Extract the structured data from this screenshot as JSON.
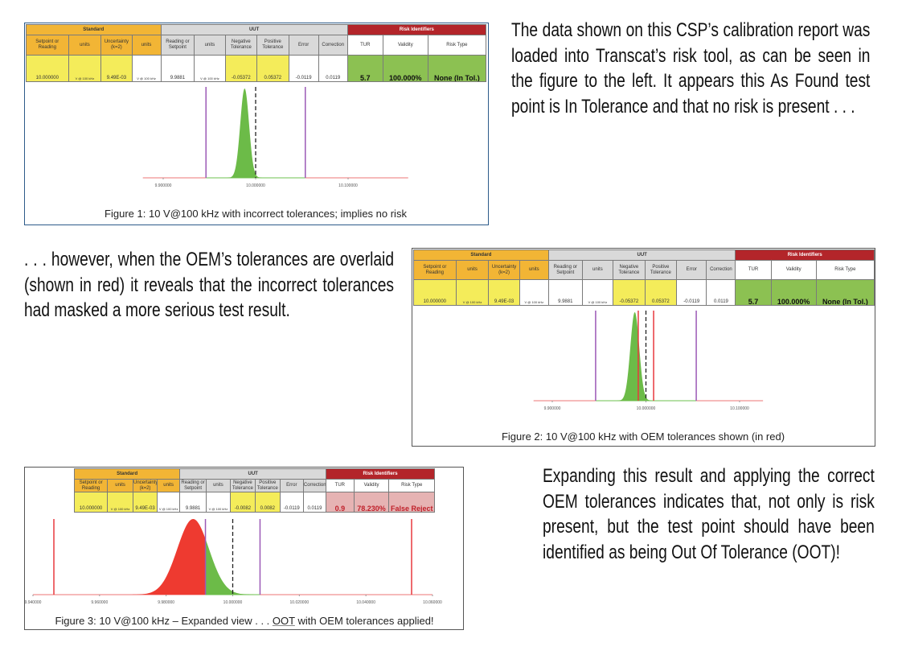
{
  "paragraphs": [
    "The data shown on this CSP’s calibration report was loaded into Transcat’s risk tool, as can be seen in the figure to the left.  It appears this As Found test point is In Tolerance and that no risk is present . . .",
    ". . . however, when  the OEM’s tolerances are overlaid (shown in red) it reveals that the incorrect tolerances had masked a more serious test result.",
    "Expanding this result and applying the correct OEM tolerances indicates that, not only is risk present, but the test point should have been identified as being Out Of Tolerance (OOT)!"
  ],
  "colors": {
    "standard": "#f2b535",
    "uut": "#d9d9d9",
    "risk_header": "#b3252a",
    "in_tol": "#8cc152",
    "false_reject": "#e6b3b3",
    "tolerance_line": "#9b59b6",
    "oem_line": "#e8383d",
    "curve_ok": "#6cbb48",
    "curve_risk": "#ee3a30"
  },
  "table_headers": {
    "groups": [
      "Standard",
      "UUT",
      "Risk Identifiers"
    ],
    "columns": [
      "Setpoint or Reading",
      "units",
      "Uncertainty (k=2)",
      "units",
      "Reading or Setpoint",
      "units",
      "Negative Tolerance",
      "Positive Tolerance",
      "Error",
      "Correction",
      "TUR",
      "Validity",
      "Risk Type"
    ]
  },
  "figures": [
    {
      "caption": "Figure 1: 10 V@100 kHz with incorrect tolerances; implies no risk",
      "row": [
        "10.000000",
        "V @ 100 kHz",
        "9.49E-03",
        "V @ 100 kHz",
        "9.9881",
        "V @ 100 kHz",
        "-0.05372",
        "0.05372",
        "-0.0119",
        "0.0119",
        "5.7",
        "100.000%",
        "None (In Tol.)"
      ],
      "risk_status": "in_tol"
    },
    {
      "caption": "Figure 2: 10 V@100 kHz with OEM tolerances shown (in red)",
      "row": [
        "10.000000",
        "V @ 100 kHz",
        "9.49E-03",
        "V @ 100 kHz",
        "9.9881",
        "V @ 100 kHz",
        "-0.05372",
        "0.05372",
        "-0.0119",
        "0.0119",
        "5.7",
        "100.000%",
        "None (In Tol.)"
      ],
      "risk_status": "in_tol"
    },
    {
      "caption_pre": "Figure 3: 10 V@100 kHz – Expanded view . . . ",
      "caption_oot": "OOT",
      "caption_post": " with OEM tolerances applied!",
      "row": [
        "10.000000",
        "V @ 100 kHz",
        "9.49E-03",
        "V @ 100 kHz",
        "9.9881",
        "V @ 100 kHz",
        "-0.0082",
        "0.0082",
        "-0.0119",
        "0.0119",
        "0.9",
        "78.230%",
        "False Reject"
      ],
      "risk_status": "false_reject"
    }
  ],
  "chart_data": [
    {
      "type": "area",
      "title": "",
      "ticks": [
        "9.900000",
        "10.000000",
        "10.100000"
      ],
      "tick_values": [
        9.9,
        10.0,
        10.1
      ],
      "axis_range": [
        9.878,
        10.165
      ],
      "nominal": 10.0,
      "distribution": {
        "mean": 9.9881,
        "sigma": 0.00475
      },
      "tolerance_limits": [
        9.94628,
        10.05372
      ],
      "oem_limits": [],
      "risk_fill_below": null
    },
    {
      "type": "area",
      "title": "",
      "ticks": [
        "9.900000",
        "10.000000",
        "10.100000"
      ],
      "tick_values": [
        9.9,
        10.0,
        10.1
      ],
      "axis_range": [
        9.88,
        10.125
      ],
      "nominal": 10.0,
      "distribution": {
        "mean": 9.9881,
        "sigma": 0.00475
      },
      "tolerance_limits": [
        9.94628,
        10.05372
      ],
      "oem_limits": [
        9.9918,
        10.0082
      ],
      "risk_fill_below": null
    },
    {
      "type": "area",
      "title": "",
      "ticks": [
        "9.940000",
        "9.960000",
        "9.980000",
        "10.000000",
        "10.020000",
        "10.040000",
        "10.060000"
      ],
      "tick_values": [
        9.94,
        9.96,
        9.98,
        10.0,
        10.02,
        10.04,
        10.06
      ],
      "axis_range": [
        9.94,
        10.06
      ],
      "nominal": 10.0,
      "distribution": {
        "mean": 9.9881,
        "sigma": 0.00475
      },
      "tolerance_limits": [
        9.9918,
        10.0082
      ],
      "oem_limits": [
        9.94628,
        10.05372
      ],
      "risk_fill_below": 9.9918
    }
  ]
}
